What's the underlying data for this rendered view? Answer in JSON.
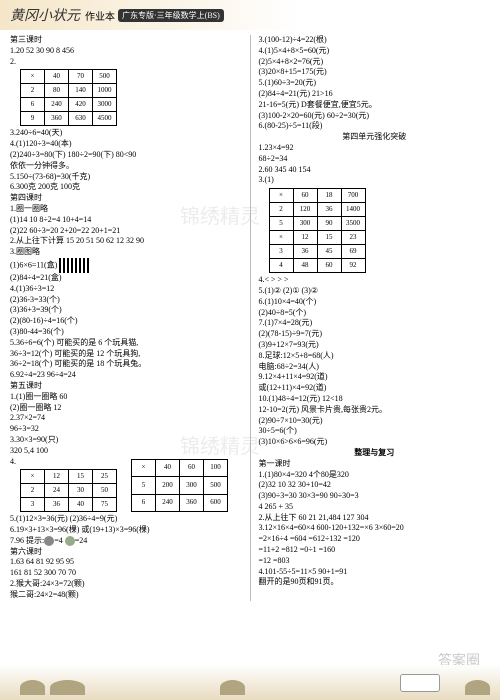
{
  "header": {
    "script": "黄冈小状元",
    "sub": "作业本",
    "badge": "广东专版·三年级数学上(BS)"
  },
  "left": {
    "l1": "第三课时",
    "l2": "1.20 52 30 90 8 456",
    "t1": {
      "r": [
        [
          "×",
          "40",
          "70",
          "500"
        ],
        [
          "2",
          "80",
          "140",
          "1000"
        ],
        [
          "6",
          "240",
          "420",
          "3000"
        ],
        [
          "9",
          "360",
          "630",
          "4500"
        ]
      ]
    },
    "l3": "3.240÷6=40(天)",
    "l4": "4.(1)120÷3=40(本)",
    "l5": "(2)240÷3=80(下) 180÷2=90(下) 80<90",
    "l6": "依依一分钟得多。",
    "l7": "5.150÷(73-68)=30(千克)",
    "l8": "6.300克 200克 100克",
    "l9": "第四课时",
    "l10": "1.圈一圈略",
    "l11": "(1)14 10 8÷2=4 10+4=14",
    "l12": "(2)22 60÷3=20 2+20=22 20+1=21",
    "l13": "2.从上往下计算 15 20 51 50 62 12 32 90",
    "l14": "3.圈图略",
    "l15": "(1)6×6=11(盒)",
    "l16": "(2)84÷4=21(盒)",
    "l17": "4.(1)36÷3=12",
    "l18": "(2)36-3=33(个)",
    "l19": "(3)36+3=39(个)",
    "l20": "(2)(80-16)÷4=16(个)",
    "l21": "(3)80-44=36(个)",
    "l22": "5.36÷6=6(个) 可能买的是 6 个玩具猫,",
    "l23": "36÷3=12(个) 可能买的是 12 个玩具狗,",
    "l24": "36÷2=18(个) 可能买的是 18 个玩具兔。",
    "l25": "6.92÷4=23 96÷4=24",
    "l26": "第五课时",
    "l27": "1.(1)圈一圈略 60",
    "l28": "(2)圈一圈略 12",
    "l29": "2.37×2=74",
    "l30": "96÷3=32",
    "l31": "3.30×3=90(只)",
    "l32": "320 5,4 100",
    "t2": {
      "r": [
        [
          "×",
          "12",
          "15",
          "25"
        ],
        [
          "2",
          "24",
          "30",
          "50"
        ],
        [
          "3",
          "36",
          "40",
          "75"
        ]
      ]
    },
    "t3": {
      "r": [
        [
          "×",
          "40",
          "60",
          "100"
        ],
        [
          "5",
          "200",
          "300",
          "500"
        ],
        [
          "6",
          "240",
          "360",
          "600"
        ]
      ]
    },
    "l33": "5.(1)12×3=36(元) (2)36÷4=9(元)",
    "l34": "6.19×3+13×3=96(棵) 或(19+13)×3=96(棵)",
    "l35": "7.96 提示:🍎=4 🍐=24",
    "l36": "第六课时",
    "l37": "1.63 64 81 92 95 95",
    "l38": "161 81 52 300 70 70",
    "l39": "2.猴大哥:24×3=72(颗)",
    "l40": "猴二哥:24×2=48(颗)"
  },
  "right": {
    "r1": "3.(100-12)÷4=22(根)",
    "r2": "4.(1)5×4+8×5=60(元)",
    "r3": "(2)5×4+8×2=76(元)",
    "r4": "(3)20×8+15=175(元)",
    "r5": "5.(1)60÷3=20(元)",
    "r6": "(2)84÷4=21(元) 21>16",
    "r7": "21-16=5(元) D套餐便宜,便宜5元。",
    "r8": "(3)100-2×20=60(元) 60÷2=30(元)",
    "r9": "6.(80-25)÷5=11(段)",
    "r10": "第四单元强化突破",
    "r11": "1.23×4=92",
    "r12": "68÷2=34",
    "r13": "2.60 345 40 154",
    "t4": {
      "r": [
        [
          "×",
          "60",
          "18",
          "700"
        ],
        [
          "2",
          "120",
          "36",
          "1400"
        ],
        [
          "5",
          "300",
          "90",
          "3500"
        ],
        [
          "×",
          "12",
          "15",
          "23"
        ],
        [
          "3",
          "36",
          "45",
          "69"
        ],
        [
          "4",
          "48",
          "60",
          "92"
        ]
      ]
    },
    "r14": "4.< > > >",
    "r15": "5.(1)② (2)① (3)②",
    "r16": "6.(1)10×4=40(个)",
    "r17": "(2)40÷8=5(个)",
    "r18": "7.(1)7×4=28(元)",
    "r19": "(2)(78-15)÷9=7(元)",
    "r20": "(3)9+12×7=93(元)",
    "r21": "8.足球:12×5+8=68(人)",
    "r22": "电脑:68÷2=34(人)",
    "r23": "9.12×4+11×4=92(道)",
    "r24": "或(12+11)×4=92(道)",
    "r25": "10.(1)48÷4=12(元) 12<18",
    "r26": "12-10=2(元) 风景卡片贵,每张贵2元。",
    "r27": "(2)90÷7×10=30(元)",
    "r28": "30÷5=6(个)",
    "r29": "(3)10×6>6×6=96(元)",
    "r30": "整理与复习",
    "r31": "第一课时",
    "r32": "1.(1)80×4=320 4个80是320",
    "r33": "(2)32 10 32 30+10=42",
    "r34": "(3)90÷3=30 30×3=90 90÷30=3",
    "r35": "4 265 + 35",
    "r36": "2.从上往下 60 21 21,484 127 304",
    "r37": "3.12×16×4=60×4 600-120+132=×6 3×60=20",
    "r38": "=2×16÷4 =604 =612÷132 =120",
    "r39": "=11+2 =812 =0÷1 =160",
    "r40": "=12 =803",
    "r41": "4.101-55÷5=11×5 90+1=91",
    "r42": "翻开的是90页和91页。"
  },
  "wm1": "锦绣精灵",
  "wm2": "答案圈"
}
